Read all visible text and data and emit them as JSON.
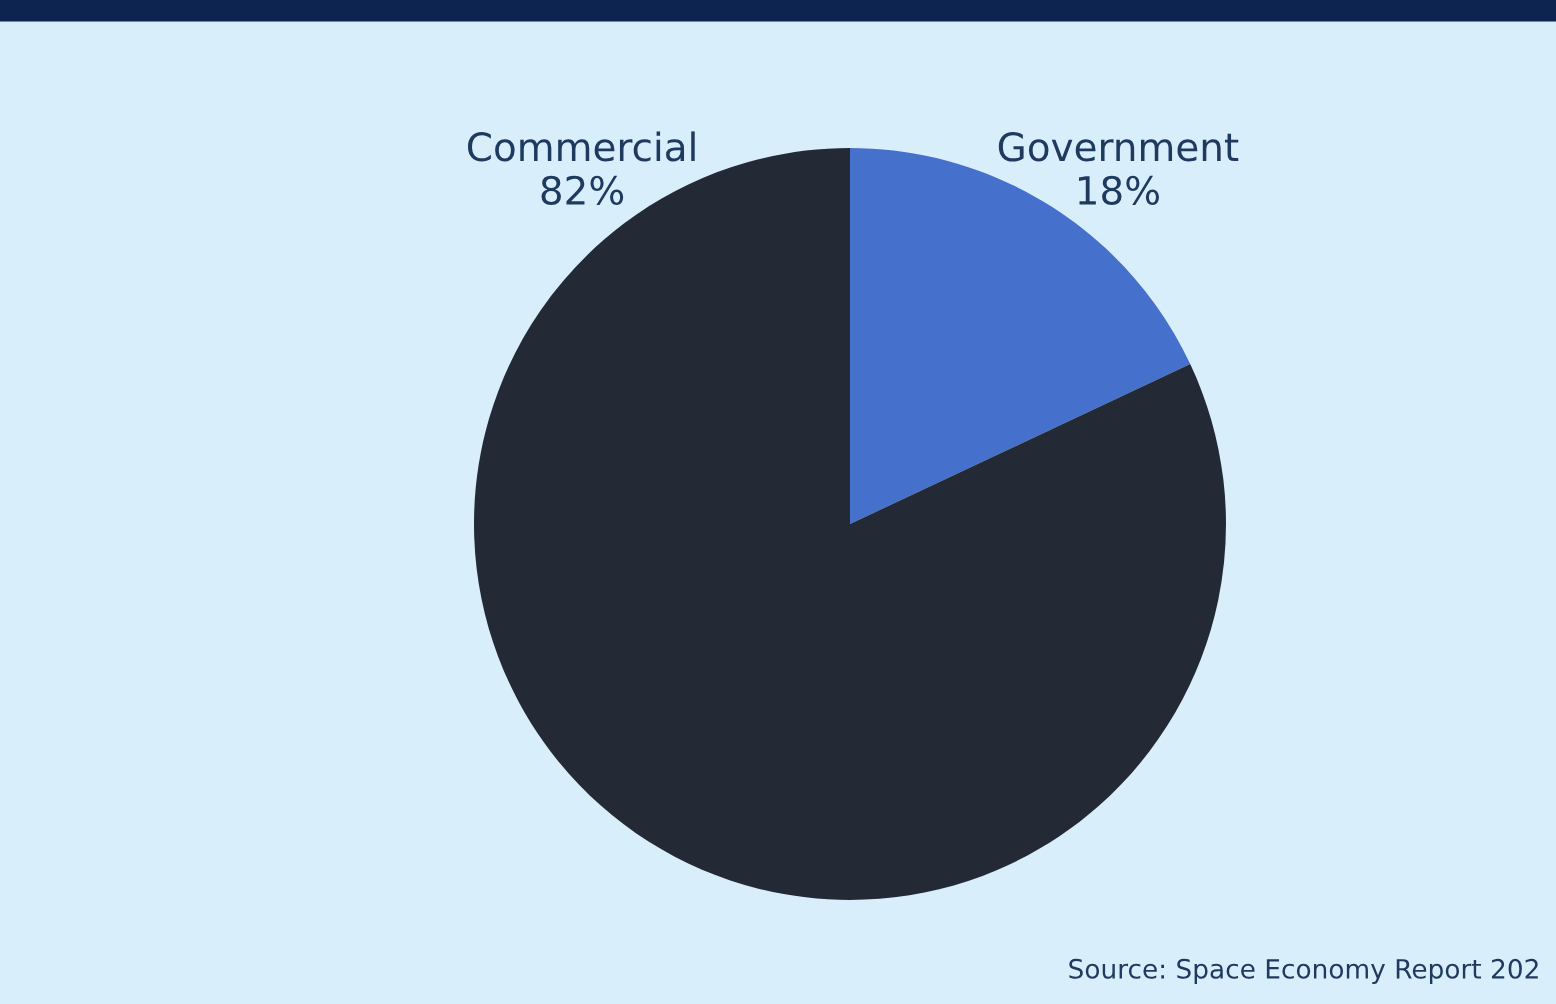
{
  "chart_data": {
    "type": "pie",
    "categories": [
      "Government",
      "Commercial"
    ],
    "values": [
      18,
      82
    ],
    "colors": [
      "#4570cc",
      "#232a36"
    ],
    "value_labels": [
      "18%",
      "82%"
    ],
    "annotations": [
      "Source: Space Economy Report 202"
    ]
  }
}
